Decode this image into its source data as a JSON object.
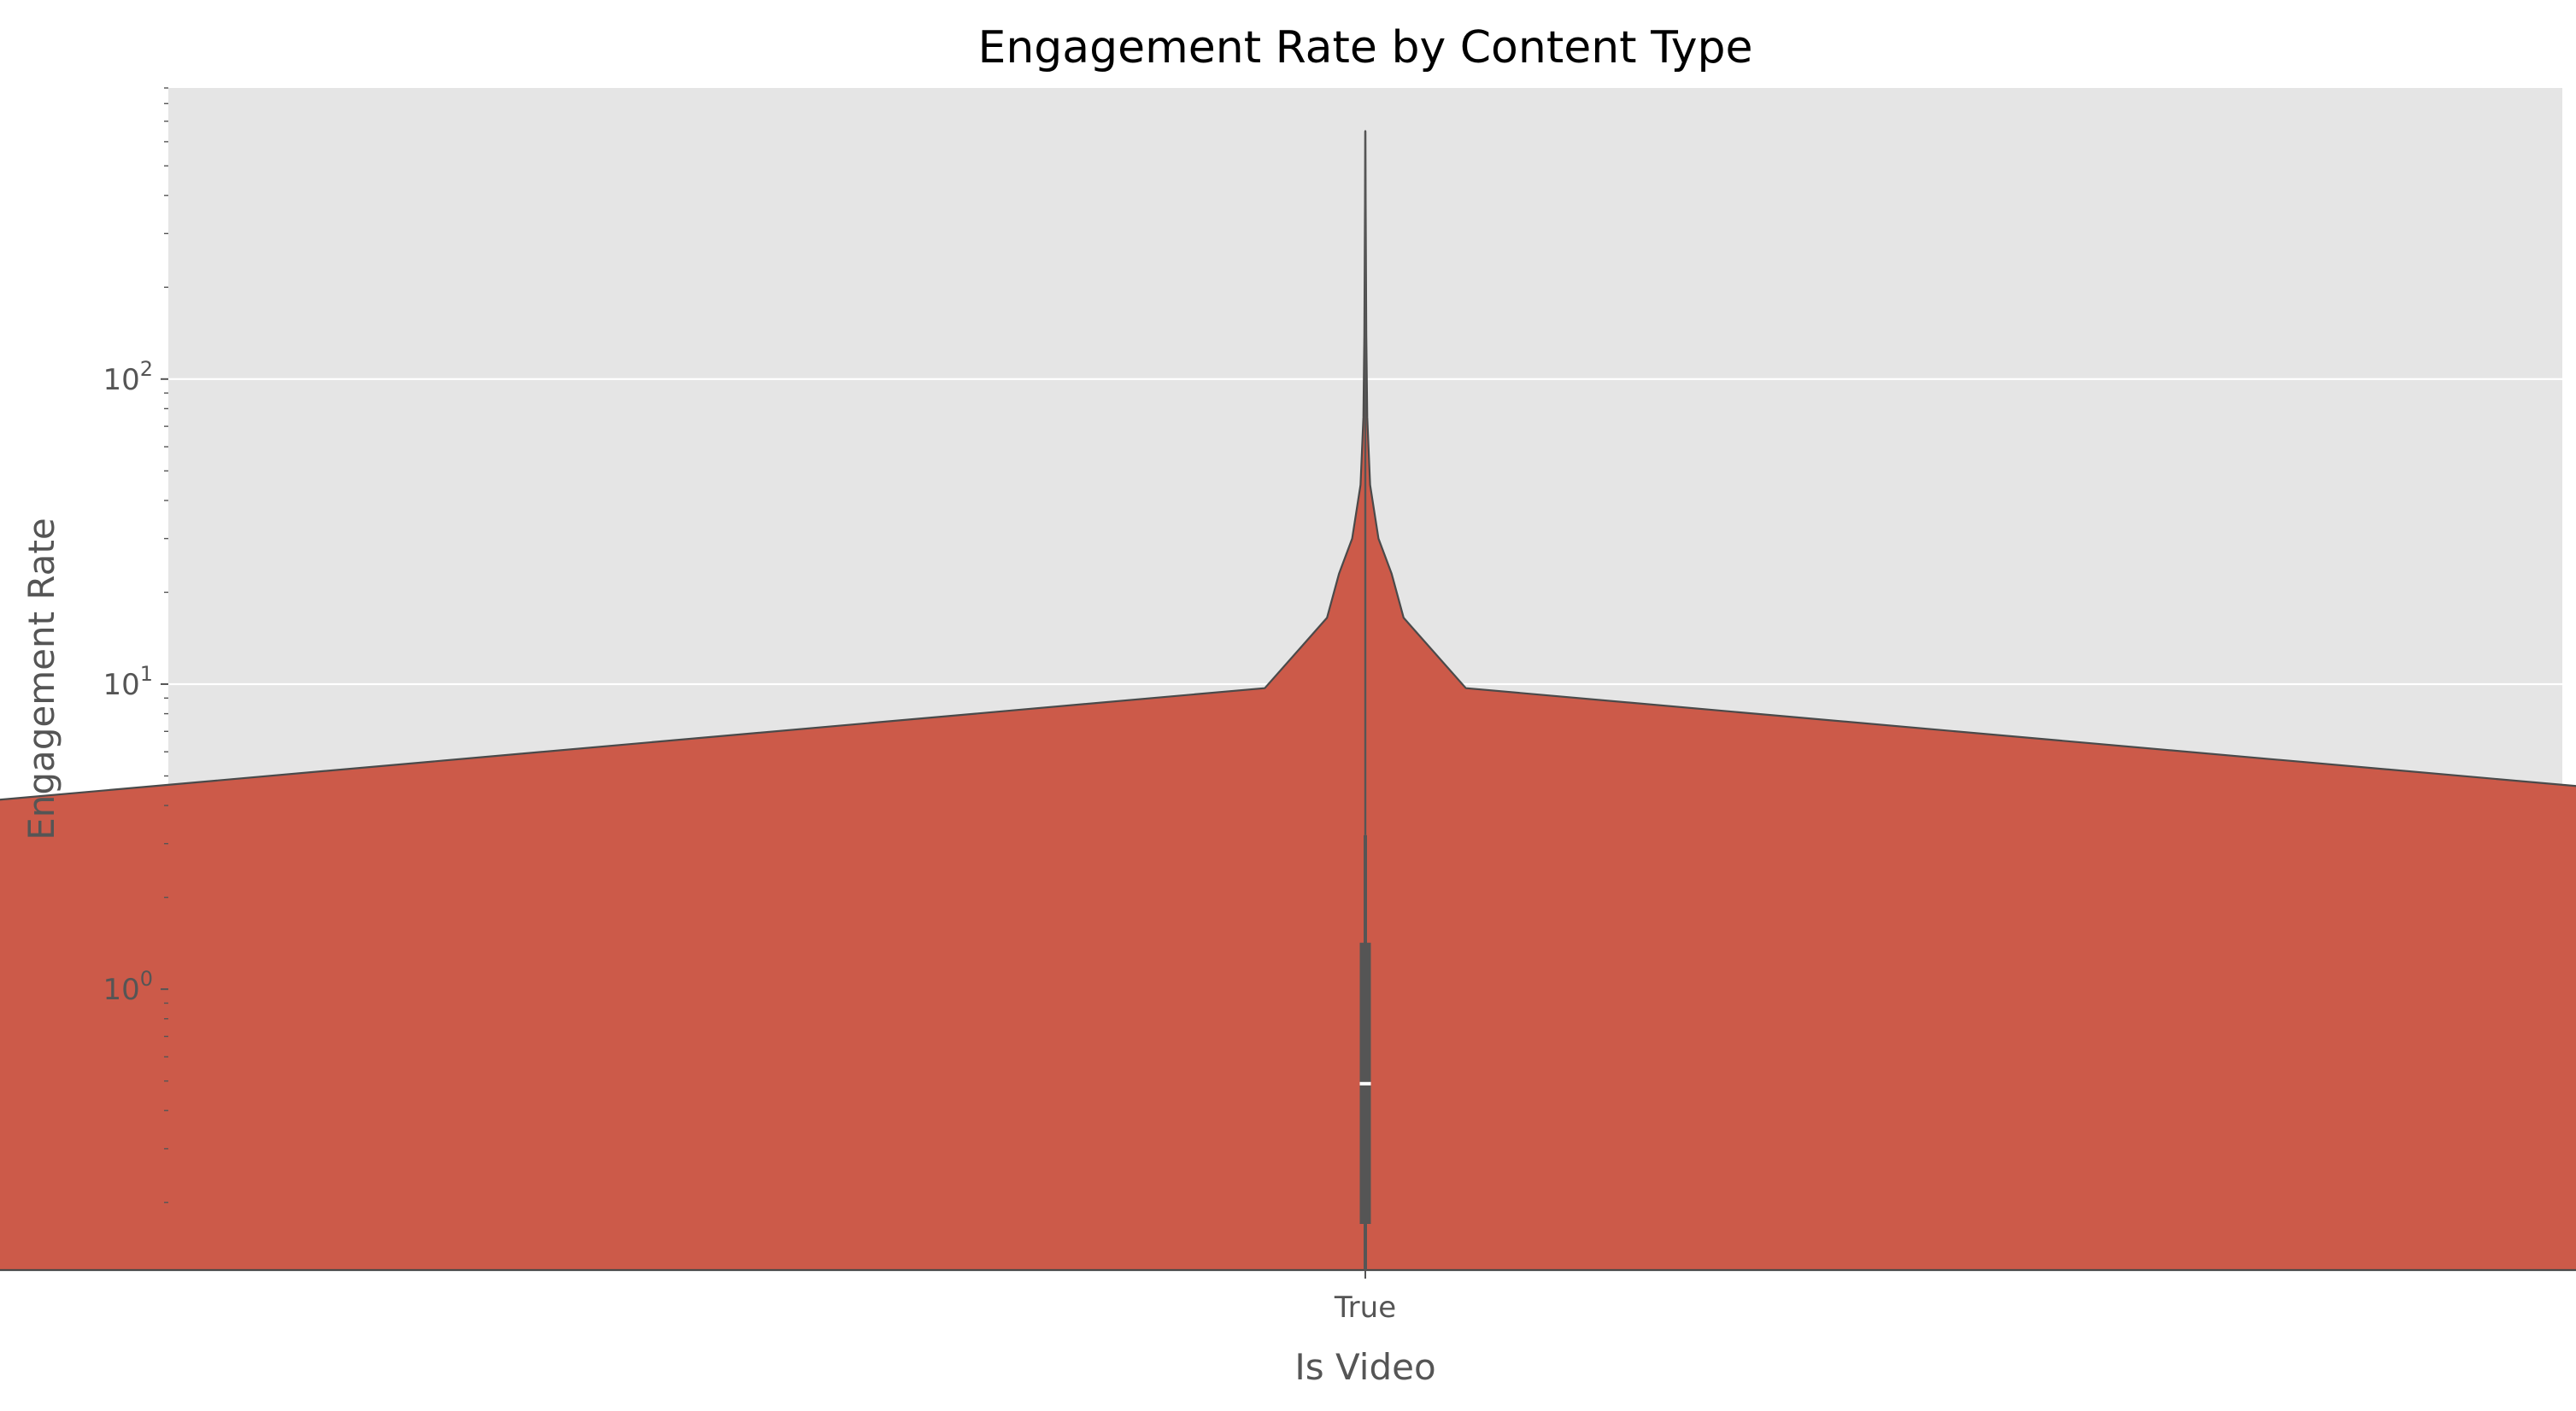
{
  "chart_data": {
    "type": "violin",
    "title": "Engagement Rate by Content Type",
    "xlabel": "Is Video",
    "ylabel": "Engagement Rate",
    "y_scale": "log",
    "ylim": [
      0.12,
      900
    ],
    "categories": [
      "True"
    ],
    "y_ticks": [
      {
        "value": 1,
        "base": "10",
        "exp": "0"
      },
      {
        "value": 10,
        "base": "10",
        "exp": "1"
      },
      {
        "value": 100,
        "base": "10",
        "exp": "2"
      }
    ],
    "grid": true,
    "legend": "none",
    "violin": {
      "category": "True",
      "profile": [
        {
          "y": 0.12,
          "halfwidth": 0.8
        },
        {
          "y": 2.9,
          "halfwidth": 0.8
        },
        {
          "y": 9.7,
          "halfwidth": 0.042
        },
        {
          "y": 16.5,
          "halfwidth": 0.016
        },
        {
          "y": 23,
          "halfwidth": 0.011
        },
        {
          "y": 30,
          "halfwidth": 0.0055
        },
        {
          "y": 45,
          "halfwidth": 0.002
        },
        {
          "y": 75,
          "halfwidth": 0.0008
        },
        {
          "y": 140,
          "halfwidth": 0.0004
        },
        {
          "y": 650,
          "halfwidth": 0
        }
      ],
      "whisker_low": 0.12,
      "whisker_high": 3.2,
      "q1": 0.17,
      "median": 0.49,
      "q3": 1.42,
      "max": 650
    },
    "colors": {
      "violin_fill": "#cc5a49",
      "violin_edge": "#4a4a4a",
      "plot_background": "#e5e5e5",
      "grid": "#ffffff",
      "box": "#555555",
      "median": "#ffffff",
      "text": "#555555",
      "title": "#000000"
    }
  }
}
